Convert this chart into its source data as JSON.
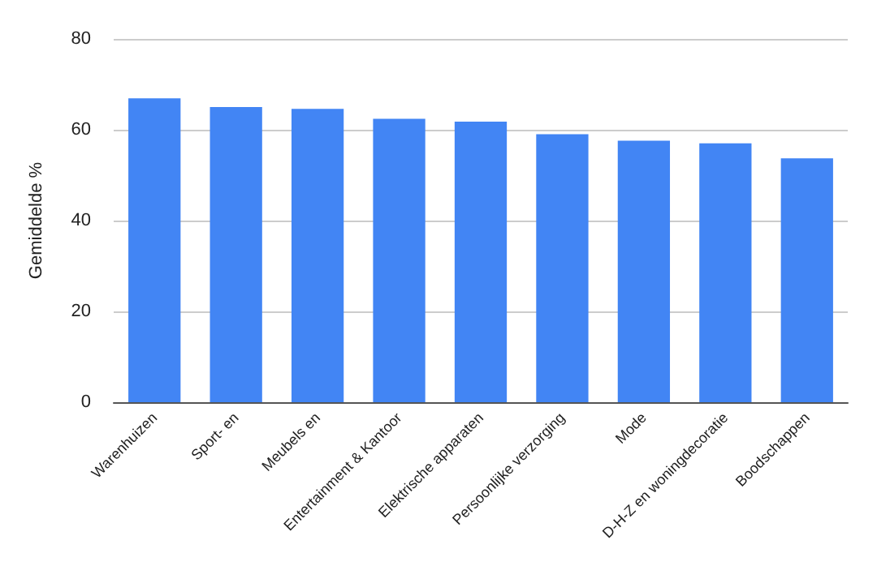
{
  "chart_data": {
    "type": "bar",
    "ylabel": "Gemiddelde %",
    "categories": [
      "Warenhuizen",
      "Sport- en",
      "Meubels en",
      "Entertainment & Kantoor",
      "Elektrische apparaten",
      "Persoonlijke verzorging",
      "Mode",
      "D-H-Z en woningdecoratie",
      "Boodschappen"
    ],
    "values": [
      66.9,
      65.0,
      64.6,
      62.4,
      61.8,
      59.0,
      57.6,
      57.0,
      53.7
    ],
    "color": "#4285f4",
    "ylim": [
      0,
      80
    ],
    "yticks": [
      0,
      20,
      40,
      60,
      80
    ],
    "grid": "y"
  }
}
